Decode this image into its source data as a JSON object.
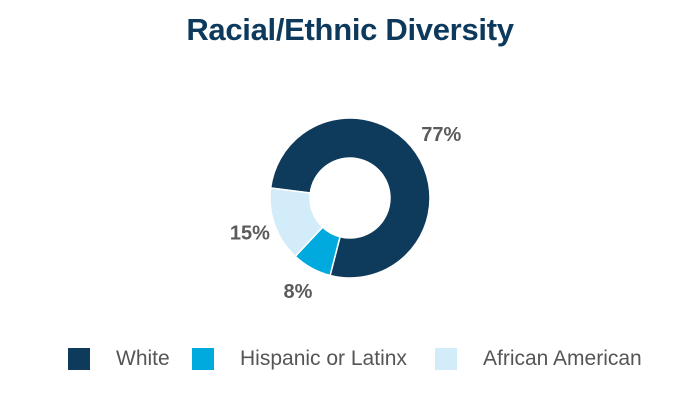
{
  "chart_data": {
    "type": "pie",
    "title": "Racial/Ethnic Diversity",
    "donut": true,
    "categories": [
      "White",
      "Hispanic or Latinx",
      "African American"
    ],
    "values": [
      77,
      8,
      15
    ],
    "value_labels": [
      "77%",
      "8%",
      "15%"
    ],
    "colors": [
      "#0e3a5c",
      "#00aade",
      "#d3ecf9"
    ],
    "legend_position": "bottom"
  }
}
